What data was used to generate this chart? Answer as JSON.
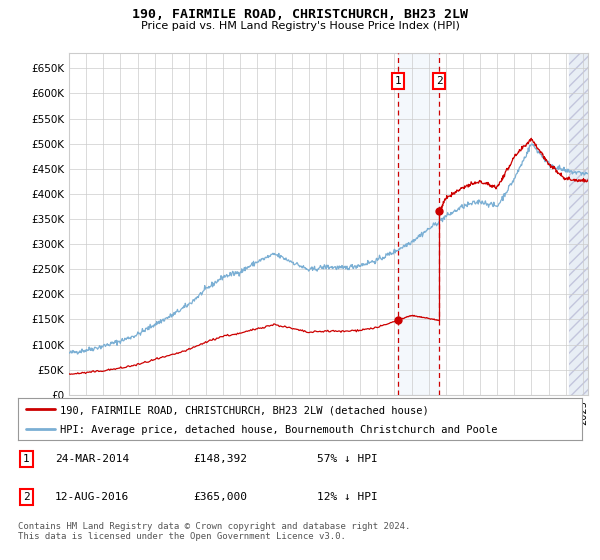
{
  "title": "190, FAIRMILE ROAD, CHRISTCHURCH, BH23 2LW",
  "subtitle": "Price paid vs. HM Land Registry's House Price Index (HPI)",
  "ylim": [
    0,
    680000
  ],
  "yticks": [
    0,
    50000,
    100000,
    150000,
    200000,
    250000,
    300000,
    350000,
    400000,
    450000,
    500000,
    550000,
    600000,
    650000
  ],
  "xlim_start": 1995.0,
  "xlim_end": 2025.3,
  "transaction1": {
    "date_num": 2014.22,
    "price": 148392,
    "label": "1"
  },
  "transaction2": {
    "date_num": 2016.62,
    "price": 365000,
    "label": "2"
  },
  "legend_red": "190, FAIRMILE ROAD, CHRISTCHURCH, BH23 2LW (detached house)",
  "legend_blue": "HPI: Average price, detached house, Bournemouth Christchurch and Poole",
  "footnote": "Contains HM Land Registry data © Crown copyright and database right 2024.\nThis data is licensed under the Open Government Licence v3.0.",
  "hpi_color": "#7bafd4",
  "red_color": "#cc0000",
  "background_color": "#ffffff",
  "grid_color": "#cccccc",
  "hpi_key_years": [
    1995,
    1996,
    1997,
    1998,
    1999,
    2000,
    2001,
    2002,
    2003,
    2004,
    2005,
    2006,
    2007,
    2008,
    2009,
    2010,
    2011,
    2012,
    2013,
    2014,
    2015,
    2016,
    2017,
    2018,
    2019,
    2020,
    2021,
    2022,
    2023,
    2024,
    2025.3
  ],
  "hpi_key_vals": [
    83000,
    89000,
    97000,
    107000,
    120000,
    140000,
    158000,
    180000,
    210000,
    235000,
    245000,
    265000,
    280000,
    265000,
    248000,
    255000,
    252000,
    258000,
    268000,
    285000,
    305000,
    330000,
    355000,
    375000,
    385000,
    375000,
    430000,
    500000,
    460000,
    445000,
    440000
  ],
  "red_key_years_pre": [
    1995,
    1996,
    1997,
    1998,
    1999,
    2000,
    2001,
    2002,
    2003,
    2004,
    2005,
    2006,
    2007,
    2008,
    2009,
    2010,
    2011,
    2012,
    2013,
    2014.22
  ],
  "red_key_vals_pre": [
    41000,
    44000,
    48000,
    53000,
    60000,
    70000,
    79000,
    90000,
    105000,
    117000,
    122000,
    132000,
    140000,
    132000,
    124000,
    127000,
    126000,
    129000,
    134000,
    148392
  ],
  "red_key_years_post": [
    2016.62,
    2017,
    2018,
    2019,
    2020,
    2021,
    2022,
    2023,
    2024,
    2025.3
  ],
  "red_key_vals_post": [
    365000,
    392000,
    413000,
    424000,
    413000,
    473000,
    510000,
    460000,
    430000,
    425000
  ],
  "red_key_years_mid": [
    2014.22,
    2014.5,
    2015,
    2015.5,
    2016,
    2016.62
  ],
  "red_key_vals_mid": [
    148392,
    152000,
    158000,
    155000,
    152000,
    148000
  ]
}
